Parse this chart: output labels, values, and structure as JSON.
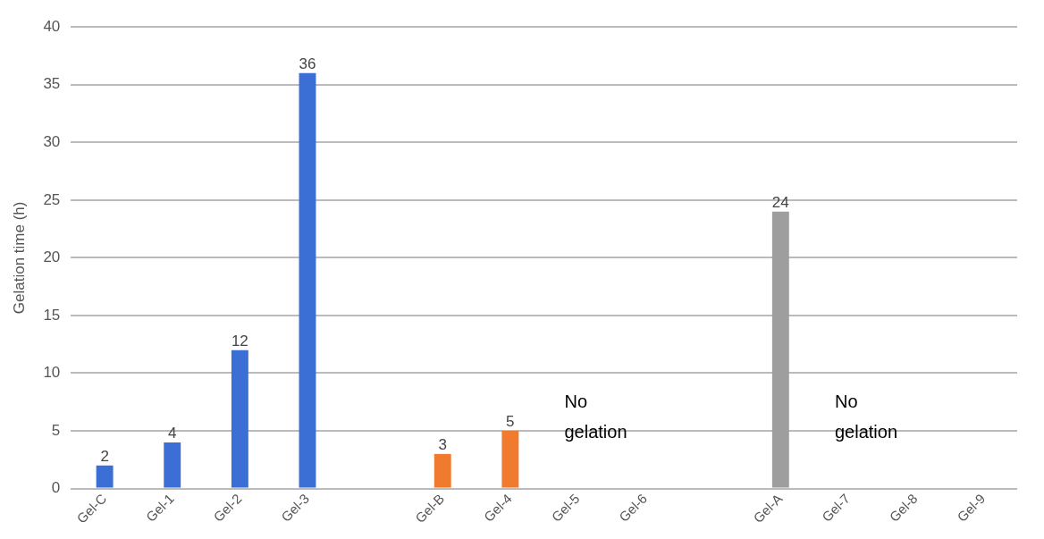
{
  "chart_data": {
    "type": "bar",
    "ylabel": "Gelation time (h)",
    "categories": [
      "Gel-C",
      "Gel-1",
      "Gel-2",
      "Gel-3",
      null,
      "Gel-B",
      "Gel-4",
      "Gel-5",
      "Gel-6",
      null,
      "Gel-A",
      "Gel-7",
      "Gel-8",
      "Gel-9"
    ],
    "values": [
      2,
      4,
      12,
      36,
      null,
      3,
      5,
      null,
      null,
      null,
      24,
      null,
      null,
      null
    ],
    "colors": [
      "#3b6fd6",
      "#3b6fd6",
      "#3b6fd6",
      "#3b6fd6",
      "#3b6fd6",
      "#f07a2e",
      "#f07a2e",
      "#f07a2e",
      "#f07a2e",
      "#9e9e9e",
      "#9e9e9e",
      "#9e9e9e",
      "#9e9e9e",
      "#9e9e9e"
    ],
    "ylim": [
      0,
      40
    ],
    "yticks": [
      0,
      5,
      10,
      15,
      20,
      25,
      30,
      35,
      40
    ],
    "grid": "y",
    "legend": false,
    "data_labels": true,
    "annotations": [
      "No gelation",
      "No gelation"
    ]
  }
}
